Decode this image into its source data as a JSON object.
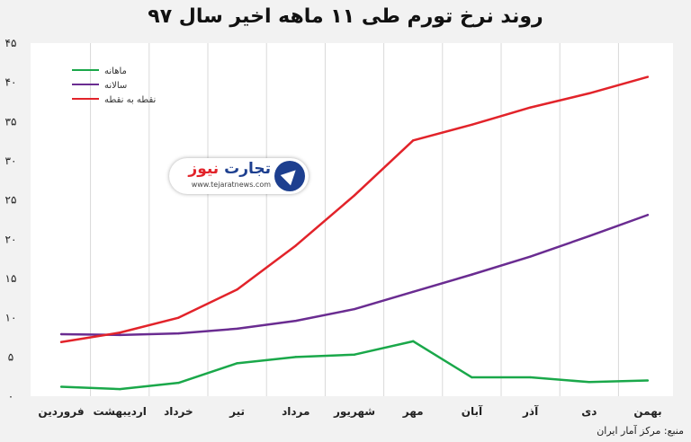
{
  "chart_data": {
    "type": "line",
    "title": "روند نرخ تورم طی ۱۱ ماهه اخیر سال ۹۷",
    "categories": [
      "فروردین",
      "اردیبهشت",
      "خرداد",
      "تیر",
      "مرداد",
      "شهریور",
      "مهر",
      "آبان",
      "آذر",
      "دی",
      "بهمن"
    ],
    "ylim": [
      0,
      45
    ],
    "yticks": [
      "۰",
      "۵",
      "۱۰",
      "۱۵",
      "۲۰",
      "۲۵",
      "۳۰",
      "۳۵",
      "۴۰",
      "۴۵"
    ],
    "ytick_values": [
      0,
      5,
      10,
      15,
      20,
      25,
      30,
      35,
      40,
      45
    ],
    "grid": "vertical",
    "legend_position": "top-left",
    "series": [
      {
        "name": "ماهانه",
        "color": "#1aa84a",
        "values": [
          1.2,
          0.9,
          1.7,
          4.2,
          5.0,
          5.3,
          7.0,
          2.4,
          2.4,
          1.8,
          2.0
        ]
      },
      {
        "name": "سالانه",
        "color": "#6a2c91",
        "values": [
          7.9,
          7.8,
          8.0,
          8.6,
          9.6,
          11.1,
          13.3,
          15.5,
          17.8,
          20.4,
          23.1
        ]
      },
      {
        "name": "نقطه به نقطه",
        "color": "#e2232a",
        "values": [
          6.9,
          8.1,
          10.0,
          13.6,
          19.2,
          25.6,
          32.6,
          34.6,
          36.8,
          38.6,
          40.7
        ]
      }
    ]
  },
  "logo": {
    "text_blue": "تجارت",
    "text_red": "نیوز",
    "url": "www.tejaratnews.com"
  },
  "source": "منبع: مرکز آمار ایران"
}
